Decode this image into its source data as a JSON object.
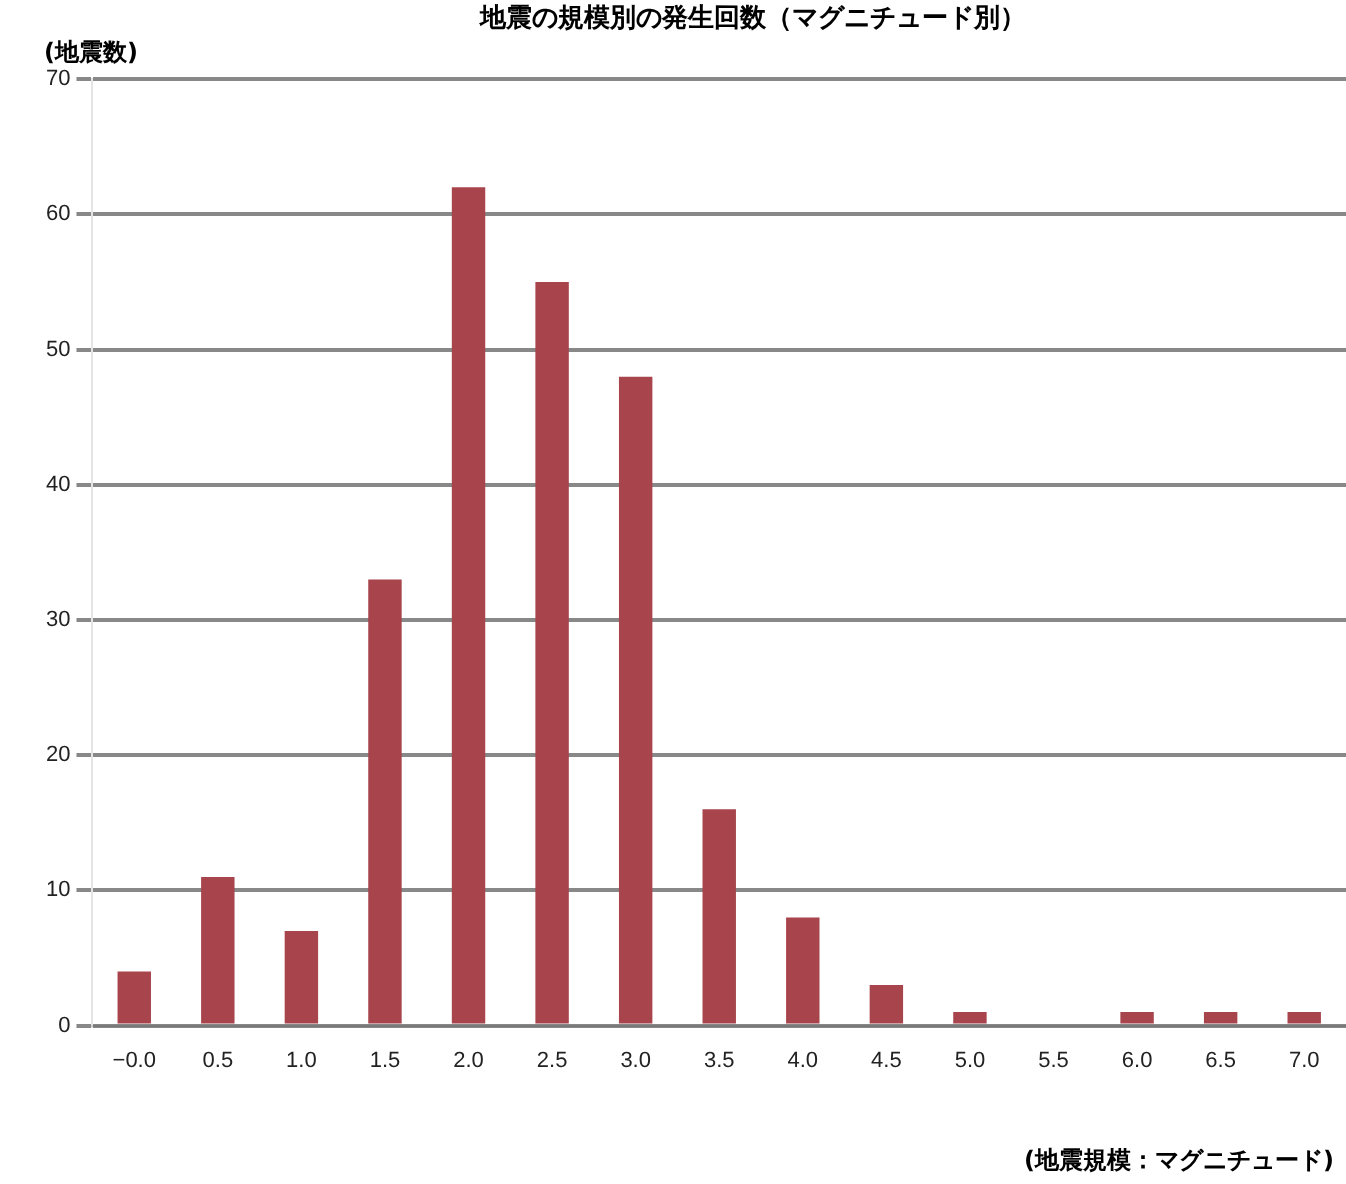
{
  "chart_data": {
    "type": "bar",
    "title": "地震の規模別の発生回数（マグニチュード別）",
    "ylabel": "(地震数)",
    "xlabel": "(地震規模：マグニチュード)",
    "categories": [
      "−0.0",
      "0.5",
      "1.0",
      "1.5",
      "2.0",
      "2.5",
      "3.0",
      "3.5",
      "4.0",
      "4.5",
      "5.0",
      "5.5",
      "6.0",
      "6.5",
      "7.0"
    ],
    "values": [
      4,
      11,
      7,
      33,
      62,
      55,
      48,
      16,
      8,
      3,
      1,
      0,
      1,
      1,
      1
    ],
    "color": "#a8444c",
    "ylim": [
      0,
      70
    ],
    "yticks": [
      0,
      10,
      20,
      30,
      40,
      50,
      60,
      70
    ],
    "grid": "y",
    "legend": false
  }
}
